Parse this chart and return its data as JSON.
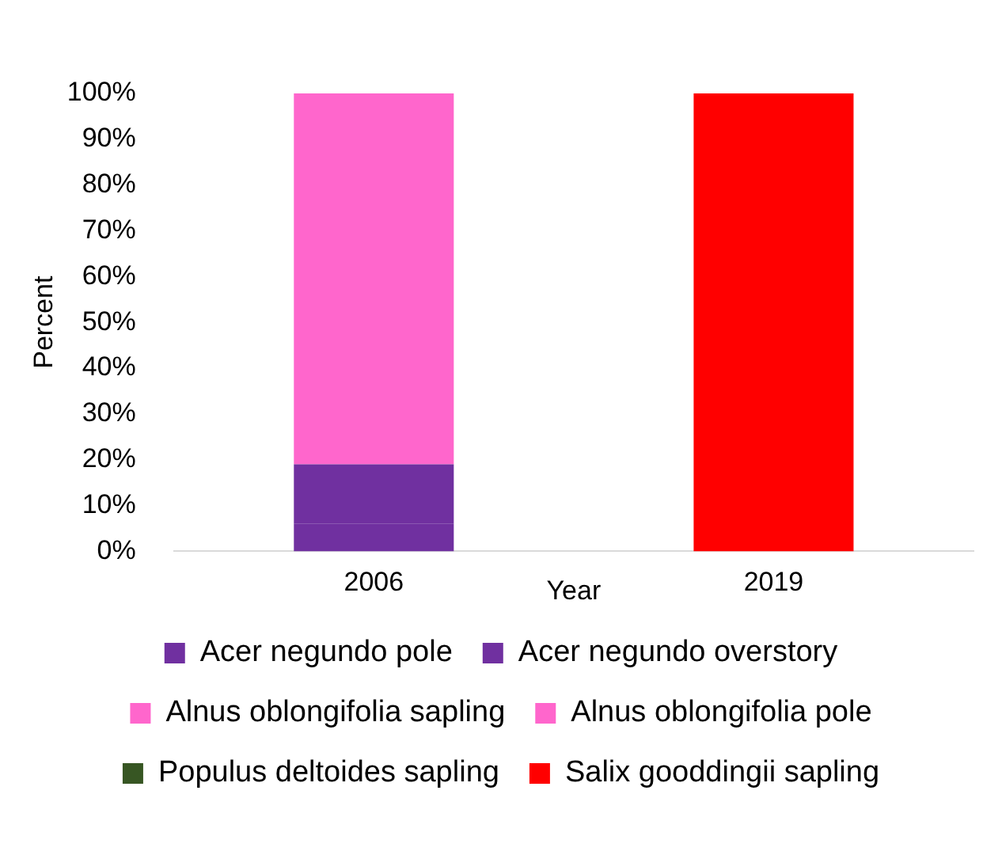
{
  "chart_data": {
    "type": "bar",
    "stacked": true,
    "categories": [
      "2006",
      "2019"
    ],
    "xlabel": "Year",
    "ylabel": "Percent",
    "ylim": [
      0,
      100
    ],
    "yticks": [
      {
        "value": 0,
        "label": "0%"
      },
      {
        "value": 10,
        "label": "10%"
      },
      {
        "value": 20,
        "label": "20%"
      },
      {
        "value": 30,
        "label": "30%"
      },
      {
        "value": 40,
        "label": "40%"
      },
      {
        "value": 50,
        "label": "50%"
      },
      {
        "value": 60,
        "label": "60%"
      },
      {
        "value": 70,
        "label": "70%"
      },
      {
        "value": 80,
        "label": "80%"
      },
      {
        "value": 90,
        "label": "90%"
      },
      {
        "value": 100,
        "label": "100%"
      }
    ],
    "series": [
      {
        "name": "Acer negundo pole",
        "color": "#7030a0",
        "values": [
          6,
          0
        ]
      },
      {
        "name": "Acer negundo overstory",
        "color": "#7030a0",
        "values": [
          13,
          0
        ]
      },
      {
        "name": "Alnus oblongifolia sapling",
        "color": "#ff66cc",
        "values": [
          2,
          0
        ]
      },
      {
        "name": "Alnus oblongifolia pole",
        "color": "#ff66cc",
        "values": [
          79,
          0
        ]
      },
      {
        "name": "Populus deltoides sapling",
        "color": "#375623",
        "values": [
          0,
          0
        ]
      },
      {
        "name": "Salix gooddingii sapling",
        "color": "#ff0000",
        "values": [
          0,
          100
        ]
      }
    ],
    "legend": "bottom"
  }
}
